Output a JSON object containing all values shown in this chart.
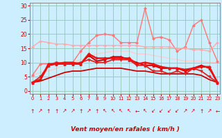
{
  "bg_color": "#cceeff",
  "grid_color": "#99ccbb",
  "xlabel": "Vent moyen/en rafales ( km/h )",
  "x_ticks": [
    0,
    1,
    2,
    3,
    4,
    5,
    6,
    7,
    8,
    9,
    10,
    11,
    12,
    13,
    14,
    15,
    16,
    17,
    18,
    19,
    20,
    21,
    22,
    23
  ],
  "y_ticks": [
    0,
    5,
    10,
    15,
    20,
    25,
    30
  ],
  "ylim": [
    -1,
    31
  ],
  "xlim": [
    -0.3,
    23.3
  ],
  "lines": [
    {
      "y": [
        3.0,
        3.5,
        4.5,
        5.5,
        6.5,
        7.0,
        7.0,
        7.5,
        8.0,
        8.0,
        8.0,
        8.0,
        7.5,
        7.0,
        7.0,
        6.5,
        6.0,
        6.0,
        6.0,
        6.0,
        6.0,
        5.5,
        4.0,
        3.0
      ],
      "color": "#cc0000",
      "lw": 1.3,
      "marker": null,
      "zorder": 3
    },
    {
      "y": [
        3.0,
        4.0,
        9.0,
        9.5,
        9.5,
        9.5,
        9.5,
        12.5,
        10.5,
        11.0,
        12.0,
        12.0,
        11.0,
        10.0,
        9.0,
        9.0,
        8.0,
        8.0,
        8.0,
        7.0,
        8.0,
        9.0,
        8.0,
        3.0
      ],
      "color": "#cc0000",
      "lw": 1.5,
      "marker": "^",
      "ms": 2.5,
      "zorder": 4
    },
    {
      "y": [
        3.0,
        5.0,
        9.0,
        10.0,
        9.5,
        9.5,
        10.0,
        11.0,
        10.0,
        10.0,
        11.0,
        11.0,
        11.0,
        9.0,
        9.0,
        7.0,
        7.0,
        6.0,
        7.0,
        6.0,
        8.0,
        7.0,
        5.0,
        3.0
      ],
      "color": "#dd2222",
      "lw": 1.3,
      "marker": "v",
      "ms": 2.5,
      "zorder": 4
    },
    {
      "y": [
        3.0,
        4.0,
        9.5,
        9.5,
        10.0,
        10.0,
        9.5,
        13.0,
        11.5,
        11.5,
        11.5,
        11.5,
        11.5,
        9.5,
        10.0,
        9.5,
        8.5,
        8.0,
        8.0,
        7.5,
        8.0,
        8.5,
        8.5,
        3.0
      ],
      "color": "#ee1111",
      "lw": 1.8,
      "marker": "D",
      "ms": 2.0,
      "zorder": 5
    },
    {
      "y": [
        5.5,
        9.5,
        9.5,
        10.0,
        10.0,
        10.0,
        14.0,
        17.0,
        19.5,
        20.0,
        19.5,
        17.0,
        17.0,
        17.0,
        29.0,
        18.5,
        19.0,
        18.0,
        14.0,
        15.5,
        23.0,
        25.0,
        17.0,
        10.5
      ],
      "color": "#ff7777",
      "lw": 1.0,
      "marker": "D",
      "ms": 2.0,
      "zorder": 2
    },
    {
      "y": [
        15.5,
        17.5,
        17.0,
        16.5,
        16.5,
        16.0,
        16.0,
        16.0,
        16.0,
        16.0,
        16.0,
        16.0,
        16.0,
        16.0,
        15.5,
        15.5,
        15.5,
        15.5,
        15.0,
        15.0,
        14.5,
        14.5,
        14.0,
        17.0
      ],
      "color": "#ffaaaa",
      "lw": 1.0,
      "marker": "D",
      "ms": 2.0,
      "zorder": 2
    },
    {
      "y": [
        5.5,
        6.5,
        7.0,
        8.0,
        9.0,
        10.0,
        11.0,
        12.0,
        13.0,
        13.5,
        14.0,
        14.0,
        14.0,
        13.0,
        13.0,
        12.5,
        12.0,
        11.5,
        11.0,
        10.5,
        10.5,
        10.5,
        10.0,
        10.0
      ],
      "color": "#ffcccc",
      "lw": 1.0,
      "marker": null,
      "zorder": 1
    }
  ],
  "wind_chars": [
    "↑",
    "↗",
    "↑",
    "↑",
    "↗",
    "↗",
    "↑",
    "↗",
    "↑",
    "↖",
    "↖",
    "↖",
    "↖",
    "←",
    "↖",
    "↙",
    "↙",
    "↙",
    "↙",
    "↗",
    "↗",
    "↑",
    "↗",
    "←"
  ]
}
